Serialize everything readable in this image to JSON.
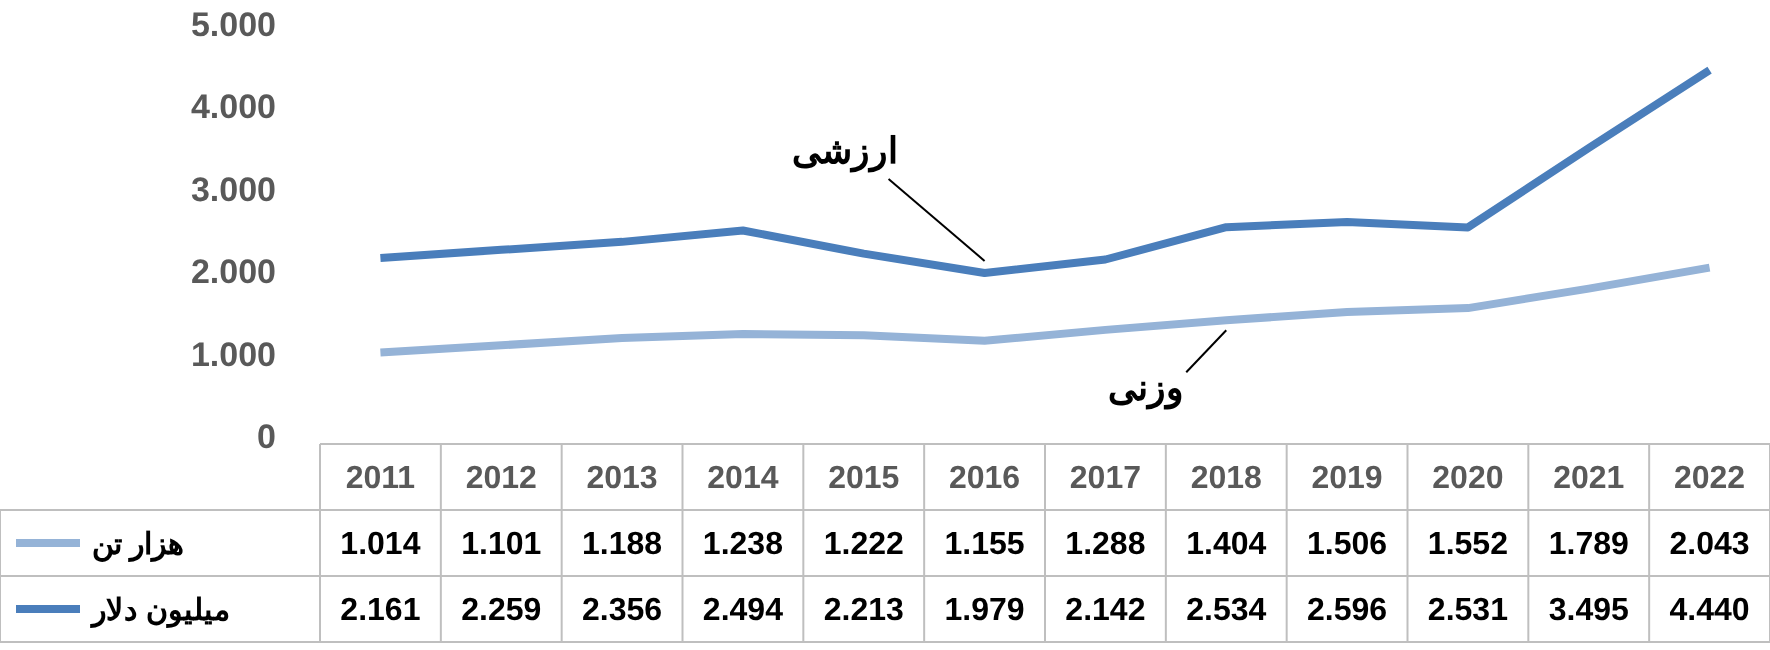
{
  "chart_data": {
    "type": "line",
    "categories": [
      "2011",
      "2012",
      "2013",
      "2014",
      "2015",
      "2016",
      "2017",
      "2018",
      "2019",
      "2020",
      "2021",
      "2022"
    ],
    "series": [
      {
        "name": "هزار تن",
        "color": "#95b3d7",
        "values": [
          1014,
          1101,
          1188,
          1238,
          1222,
          1155,
          1288,
          1404,
          1506,
          1552,
          1789,
          2043
        ],
        "value_labels": [
          "1.014",
          "1.101",
          "1.188",
          "1.238",
          "1.222",
          "1.155",
          "1.288",
          "1.404",
          "1.506",
          "1.552",
          "1.789",
          "2.043"
        ]
      },
      {
        "name": "میلیون دلار",
        "color": "#4a7ebb",
        "values": [
          2161,
          2259,
          2356,
          2494,
          2213,
          1979,
          2142,
          2534,
          2596,
          2531,
          3495,
          4440
        ],
        "value_labels": [
          "2.161",
          "2.259",
          "2.356",
          "2.494",
          "2.213",
          "1.979",
          "2.142",
          "2.534",
          "2.596",
          "2.531",
          "3.495",
          "4.440"
        ]
      }
    ],
    "ylim": [
      0,
      5000
    ],
    "yticks": [
      {
        "value": 0,
        "label": "0"
      },
      {
        "value": 1000,
        "label": "1.000"
      },
      {
        "value": 2000,
        "label": "2.000"
      },
      {
        "value": 3000,
        "label": "3.000"
      },
      {
        "value": 4000,
        "label": "4.000"
      },
      {
        "value": 5000,
        "label": "5.000"
      }
    ],
    "grid": false,
    "legend": "bottom",
    "marker": "none",
    "line_style": "solid",
    "annotations": [
      {
        "text": "ارزشی",
        "x": "2016",
        "y": 1979
      },
      {
        "text": "وزنی",
        "x": "2018",
        "y": 1404
      }
    ]
  }
}
